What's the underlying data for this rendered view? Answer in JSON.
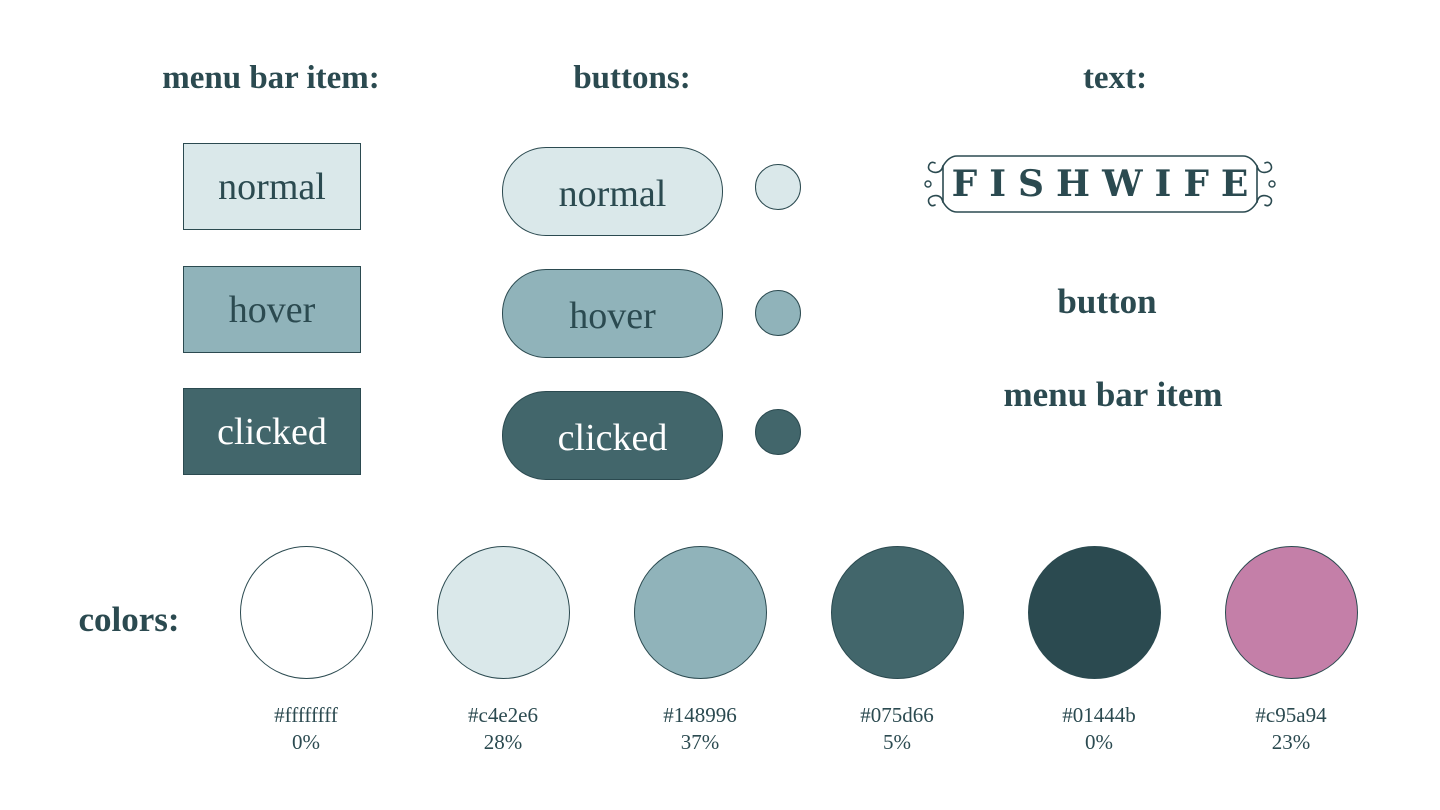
{
  "headings": {
    "menu_bar_item": "menu bar item:",
    "buttons": "buttons:",
    "text": "text:",
    "colors": "colors:"
  },
  "menu_bar_states": [
    {
      "label": "normal",
      "color": "#dae8ea"
    },
    {
      "label": "hover",
      "color": "#90b3ba"
    },
    {
      "label": "clicked",
      "color": "#42666b"
    }
  ],
  "button_states": [
    {
      "label": "normal",
      "color": "#dae8ea"
    },
    {
      "label": "hover",
      "color": "#90b3ba"
    },
    {
      "label": "clicked",
      "color": "#42666b"
    }
  ],
  "text_samples": {
    "logo": "FISHWIFE",
    "button": "button",
    "menu_bar_item": "menu bar item"
  },
  "colors": [
    {
      "hex": "#ffffffff",
      "percent": "0%",
      "fill": "#ffffff"
    },
    {
      "hex": "#c4e2e6",
      "percent": "28%",
      "fill": "#dae8ea"
    },
    {
      "hex": "#148996",
      "percent": "37%",
      "fill": "#90b3ba"
    },
    {
      "hex": "#075d66",
      "percent": "5%",
      "fill": "#42666b"
    },
    {
      "hex": "#01444b",
      "percent": "0%",
      "fill": "#2b4a50"
    },
    {
      "hex": "#c95a94",
      "percent": "23%",
      "fill": "#c47fa8"
    }
  ]
}
